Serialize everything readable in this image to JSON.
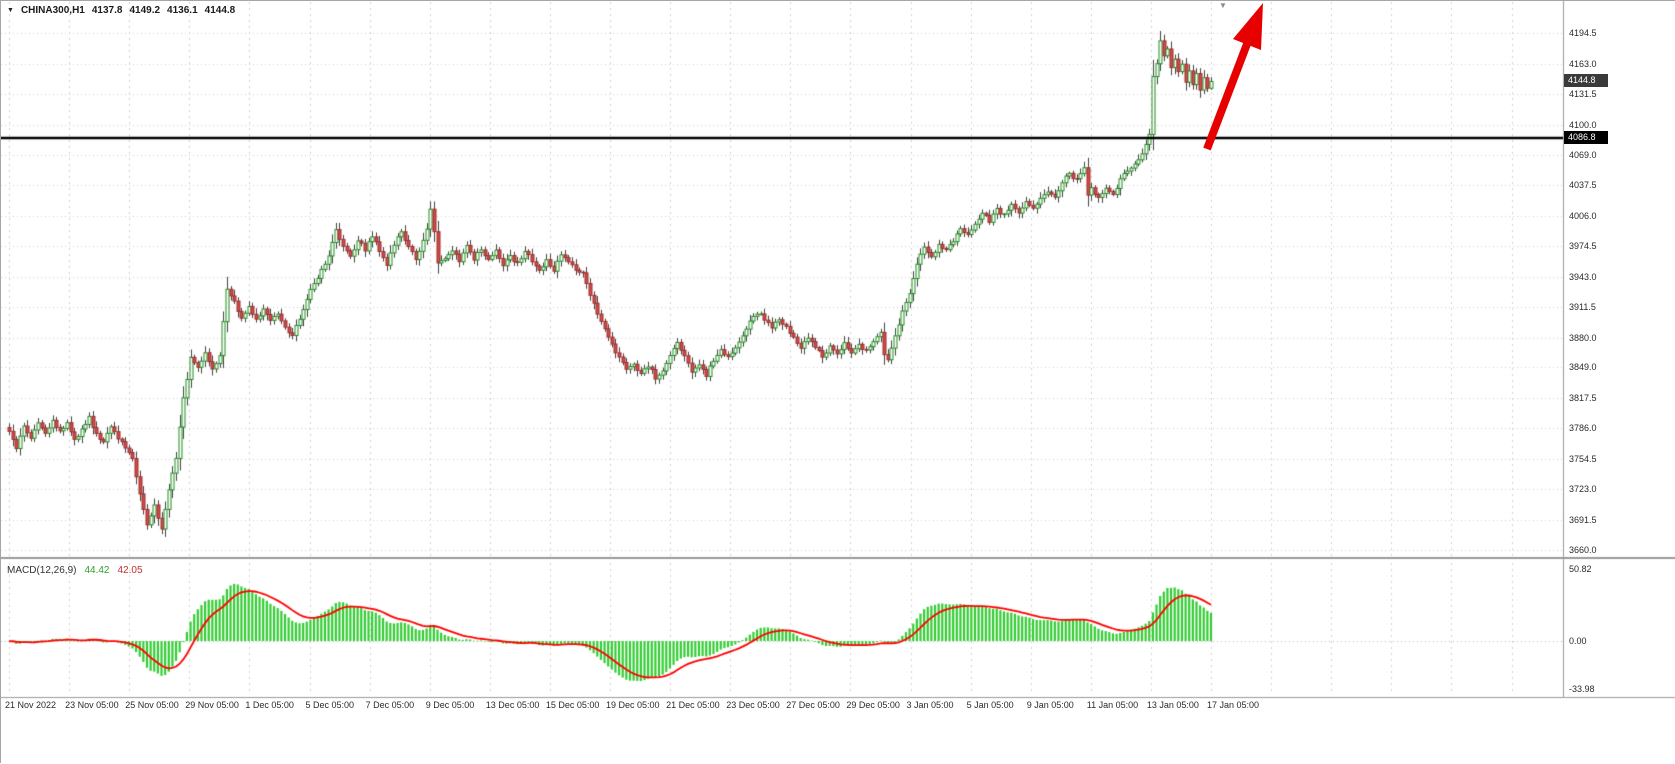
{
  "quote_bar": {
    "symbol_period": "CHINA300,H1",
    "open": "4137.8",
    "high": "4149.2",
    "low": "4136.1",
    "close": "4144.8"
  },
  "icons": {
    "symbol_dropdown": "▼",
    "shift_marker": "▼"
  },
  "price_axis": {
    "current_price_badge": "4144.8",
    "hline_badge": "4086.8"
  },
  "macd_panel": {
    "label": "MACD(12,26,9)",
    "value_main": "44.42",
    "value_signal": "42.05",
    "axis_ticks": [
      "50.82",
      "0.00",
      "-33.98"
    ]
  },
  "colors": {
    "up_candle": "#ffffff",
    "up_border": "#1f8b1f",
    "down_candle": "#d14b4b",
    "down_border": "#9e2f2f",
    "wick": "#444444",
    "histogram": "#32cd32",
    "signal_line": "#ff0000",
    "hline": "#000000",
    "arrow": "#e60000",
    "badge_current_bg": "#3a3a3a",
    "badge_hline_bg": "#000000",
    "grid": "#d4d4d4"
  },
  "chart_data": {
    "type": "candlestick",
    "symbol": "CHINA300",
    "timeframe": "H1",
    "bars_total": 332,
    "hline": 4086.8,
    "current_bar": {
      "open": 4137.8,
      "high": 4149.2,
      "low": 4136.1,
      "close": 4144.8
    },
    "y_axis": {
      "top_value": 4228,
      "bottom_value": 3653,
      "ticks": [
        "4194.5",
        "4163.0",
        "4131.5",
        "4100.0",
        "4069.0",
        "4037.5",
        "4006.0",
        "3974.5",
        "3943.0",
        "3911.5",
        "3880.0",
        "3849.0",
        "3817.5",
        "3786.0",
        "3754.5",
        "3723.0",
        "3691.5",
        "3660.0"
      ]
    },
    "x_labels": [
      "21 Nov 2022",
      "23 Nov 05:00",
      "25 Nov 05:00",
      "29 Nov 05:00",
      "1 Dec 05:00",
      "5 Dec 05:00",
      "7 Dec 05:00",
      "9 Dec 05:00",
      "13 Dec 05:00",
      "15 Dec 05:00",
      "19 Dec 05:00",
      "21 Dec 05:00",
      "23 Dec 05:00",
      "27 Dec 05:00",
      "29 Dec 05:00",
      "3 Jan 05:00",
      "5 Jan 05:00",
      "9 Jan 05:00",
      "11 Jan 05:00",
      "13 Jan 05:00",
      "17 Jan 05:00"
    ],
    "indicator": {
      "name": "MACD",
      "params": [
        12,
        26,
        9
      ],
      "last_main": 44.42,
      "last_signal": 42.05,
      "scale_max": 50.82,
      "scale_min": -33.98
    },
    "annotations": {
      "horizontal_line_price": 4086.8,
      "trend_arrow": "thick red arrow pointing up-right above breakout at top-right"
    },
    "close_waypoints": [
      [
        0,
        3782
      ],
      [
        2,
        3766
      ],
      [
        4,
        3788
      ],
      [
        6,
        3776
      ],
      [
        8,
        3792
      ],
      [
        10,
        3779
      ],
      [
        12,
        3794
      ],
      [
        14,
        3784
      ],
      [
        16,
        3790
      ],
      [
        18,
        3773
      ],
      [
        20,
        3786
      ],
      [
        22,
        3797
      ],
      [
        24,
        3780
      ],
      [
        26,
        3771
      ],
      [
        28,
        3787
      ],
      [
        30,
        3777
      ],
      [
        32,
        3767
      ],
      [
        34,
        3756
      ],
      [
        36,
        3718
      ],
      [
        38,
        3688
      ],
      [
        40,
        3706
      ],
      [
        42,
        3682
      ],
      [
        44,
        3722
      ],
      [
        46,
        3756
      ],
      [
        48,
        3816
      ],
      [
        50,
        3858
      ],
      [
        52,
        3850
      ],
      [
        54,
        3863
      ],
      [
        56,
        3849
      ],
      [
        58,
        3860
      ],
      [
        60,
        3931
      ],
      [
        62,
        3916
      ],
      [
        64,
        3901
      ],
      [
        66,
        3912
      ],
      [
        68,
        3898
      ],
      [
        70,
        3909
      ],
      [
        72,
        3899
      ],
      [
        74,
        3906
      ],
      [
        76,
        3891
      ],
      [
        78,
        3882
      ],
      [
        80,
        3899
      ],
      [
        82,
        3921
      ],
      [
        84,
        3936
      ],
      [
        86,
        3949
      ],
      [
        88,
        3963
      ],
      [
        90,
        3991
      ],
      [
        92,
        3976
      ],
      [
        94,
        3963
      ],
      [
        96,
        3981
      ],
      [
        98,
        3971
      ],
      [
        100,
        3986
      ],
      [
        102,
        3969
      ],
      [
        104,
        3956
      ],
      [
        106,
        3976
      ],
      [
        108,
        3989
      ],
      [
        110,
        3973
      ],
      [
        112,
        3961
      ],
      [
        114,
        3979
      ],
      [
        115,
        3993
      ],
      [
        116,
        4013
      ],
      [
        117,
        3990
      ],
      [
        118,
        3956
      ],
      [
        120,
        3963
      ],
      [
        122,
        3971
      ],
      [
        124,
        3960
      ],
      [
        126,
        3974
      ],
      [
        128,
        3961
      ],
      [
        130,
        3972
      ],
      [
        132,
        3959
      ],
      [
        134,
        3969
      ],
      [
        136,
        3954
      ],
      [
        138,
        3964
      ],
      [
        140,
        3956
      ],
      [
        142,
        3969
      ],
      [
        144,
        3960
      ],
      [
        146,
        3948
      ],
      [
        148,
        3959
      ],
      [
        150,
        3950
      ],
      [
        152,
        3965
      ],
      [
        154,
        3958
      ],
      [
        156,
        3950
      ],
      [
        158,
        3946
      ],
      [
        160,
        3925
      ],
      [
        162,
        3906
      ],
      [
        164,
        3891
      ],
      [
        166,
        3873
      ],
      [
        168,
        3859
      ],
      [
        170,
        3846
      ],
      [
        172,
        3853
      ],
      [
        174,
        3841
      ],
      [
        176,
        3851
      ],
      [
        178,
        3839
      ],
      [
        180,
        3846
      ],
      [
        182,
        3863
      ],
      [
        184,
        3876
      ],
      [
        186,
        3861
      ],
      [
        188,
        3843
      ],
      [
        190,
        3853
      ],
      [
        192,
        3841
      ],
      [
        194,
        3856
      ],
      [
        196,
        3869
      ],
      [
        198,
        3859
      ],
      [
        200,
        3871
      ],
      [
        202,
        3883
      ],
      [
        204,
        3896
      ],
      [
        206,
        3906
      ],
      [
        208,
        3899
      ],
      [
        210,
        3889
      ],
      [
        212,
        3899
      ],
      [
        214,
        3891
      ],
      [
        216,
        3879
      ],
      [
        218,
        3869
      ],
      [
        220,
        3881
      ],
      [
        222,
        3871
      ],
      [
        224,
        3859
      ],
      [
        226,
        3871
      ],
      [
        228,
        3863
      ],
      [
        230,
        3873
      ],
      [
        232,
        3863
      ],
      [
        234,
        3873
      ],
      [
        236,
        3866
      ],
      [
        238,
        3876
      ],
      [
        240,
        3886
      ],
      [
        241,
        3861
      ],
      [
        242,
        3856
      ],
      [
        244,
        3881
      ],
      [
        246,
        3906
      ],
      [
        248,
        3926
      ],
      [
        250,
        3956
      ],
      [
        252,
        3973
      ],
      [
        254,
        3963
      ],
      [
        256,
        3976
      ],
      [
        258,
        3969
      ],
      [
        260,
        3981
      ],
      [
        262,
        3993
      ],
      [
        264,
        3986
      ],
      [
        266,
        3999
      ],
      [
        268,
        4009
      ],
      [
        270,
        4001
      ],
      [
        272,
        4013
      ],
      [
        274,
        4006
      ],
      [
        276,
        4016
      ],
      [
        278,
        4009
      ],
      [
        280,
        4019
      ],
      [
        282,
        4013
      ],
      [
        284,
        4023
      ],
      [
        286,
        4031
      ],
      [
        288,
        4026
      ],
      [
        290,
        4041
      ],
      [
        292,
        4049
      ],
      [
        294,
        4043
      ],
      [
        296,
        4056
      ],
      [
        297,
        4026
      ],
      [
        298,
        4036
      ],
      [
        300,
        4023
      ],
      [
        302,
        4036
      ],
      [
        304,
        4029
      ],
      [
        306,
        4043
      ],
      [
        308,
        4053
      ],
      [
        310,
        4059
      ],
      [
        312,
        4069
      ],
      [
        313,
        4079
      ],
      [
        314,
        4091
      ],
      [
        315,
        4151
      ],
      [
        316,
        4163
      ],
      [
        317,
        4186
      ],
      [
        318,
        4171
      ],
      [
        319,
        4179
      ],
      [
        320,
        4161
      ],
      [
        321,
        4169
      ],
      [
        322,
        4153
      ],
      [
        323,
        4161
      ],
      [
        324,
        4146
      ],
      [
        325,
        4156
      ],
      [
        326,
        4141
      ],
      [
        327,
        4151
      ],
      [
        328,
        4137
      ],
      [
        329,
        4147
      ],
      [
        330,
        4138
      ],
      [
        331,
        4144.8
      ]
    ]
  }
}
